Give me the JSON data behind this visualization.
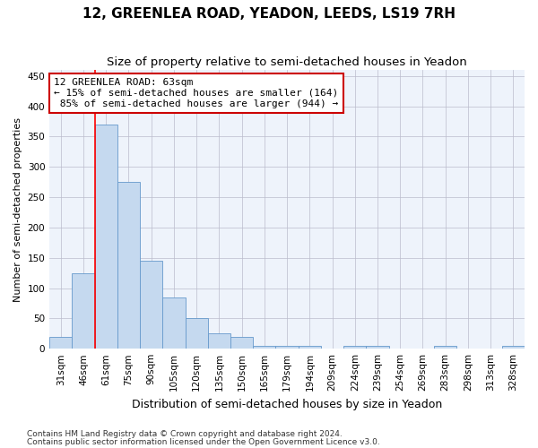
{
  "title": "12, GREENLEA ROAD, YEADON, LEEDS, LS19 7RH",
  "subtitle": "Size of property relative to semi-detached houses in Yeadon",
  "xlabel": "Distribution of semi-detached houses by size in Yeadon",
  "ylabel": "Number of semi-detached properties",
  "bin_labels": [
    "31sqm",
    "46sqm",
    "61sqm",
    "75sqm",
    "90sqm",
    "105sqm",
    "120sqm",
    "135sqm",
    "150sqm",
    "165sqm",
    "179sqm",
    "194sqm",
    "209sqm",
    "224sqm",
    "239sqm",
    "254sqm",
    "269sqm",
    "283sqm",
    "298sqm",
    "313sqm",
    "328sqm"
  ],
  "bar_values": [
    20,
    125,
    370,
    275,
    145,
    85,
    50,
    25,
    20,
    5,
    5,
    5,
    0,
    5,
    5,
    0,
    0,
    5,
    0,
    0,
    5
  ],
  "bar_color": "#c5d9ef",
  "bar_edge_color": "#6699cc",
  "property_label": "12 GREENLEA ROAD: 63sqm",
  "pct_smaller": 15,
  "pct_larger": 85,
  "n_smaller": 164,
  "n_larger": 944,
  "vline_x": 1.5,
  "annotation_box_color": "#ffffff",
  "annotation_box_edge": "#cc0000",
  "ylim": [
    0,
    460
  ],
  "yticks": [
    0,
    50,
    100,
    150,
    200,
    250,
    300,
    350,
    400,
    450
  ],
  "footnote1": "Contains HM Land Registry data © Crown copyright and database right 2024.",
  "footnote2": "Contains public sector information licensed under the Open Government Licence v3.0.",
  "title_fontsize": 11,
  "subtitle_fontsize": 9.5,
  "xlabel_fontsize": 9,
  "ylabel_fontsize": 8,
  "tick_fontsize": 7.5,
  "annot_fontsize": 8,
  "footnote_fontsize": 6.5,
  "bg_color": "#eef3fb"
}
